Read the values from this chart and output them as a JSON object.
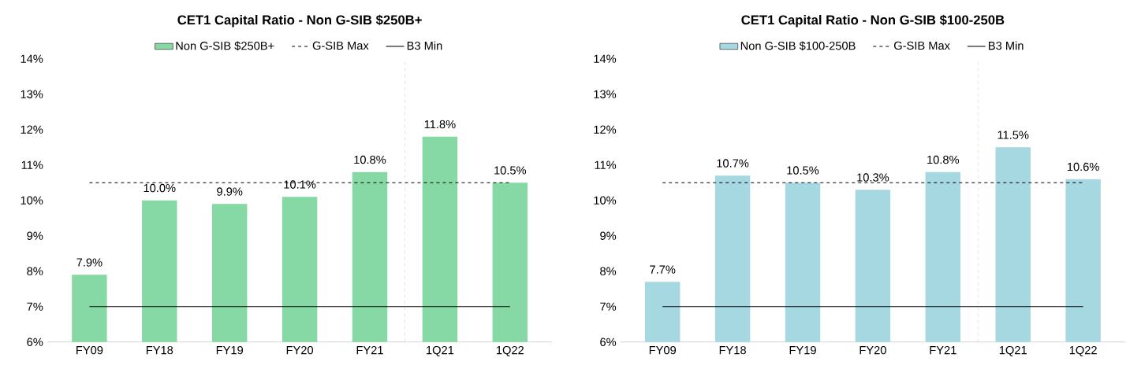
{
  "chart_data": [
    {
      "type": "bar",
      "title": "CET1 Capital Ratio - Non G-SIB $250B+",
      "categories": [
        "FY09",
        "FY18",
        "FY19",
        "FY20",
        "FY21",
        "1Q21",
        "1Q22"
      ],
      "series": [
        {
          "name": "Non G-SIB $250B+",
          "color": "#86d9a4",
          "values": [
            7.9,
            10.0,
            9.9,
            10.1,
            10.8,
            11.8,
            10.5
          ],
          "value_labels": [
            "7.9%",
            "10.0%",
            "9.9%",
            "10.1%",
            "10.8%",
            "11.8%",
            "10.5%"
          ]
        },
        {
          "name": "G-SIB Max",
          "type": "line",
          "line_style": "dashed",
          "color": "#000000",
          "values": [
            10.5,
            10.5,
            10.5,
            10.5,
            10.5,
            10.5,
            10.5
          ]
        },
        {
          "name": "B3 Min",
          "type": "line",
          "line_style": "solid",
          "color": "#000000",
          "values": [
            7,
            7,
            7,
            7,
            7,
            7,
            7
          ]
        }
      ],
      "ylim": [
        6,
        14
      ],
      "yticks": [
        {
          "value": 6,
          "label": "6%"
        },
        {
          "value": 7,
          "label": "7%"
        },
        {
          "value": 8,
          "label": "8%"
        },
        {
          "value": 9,
          "label": "9%"
        },
        {
          "value": 10,
          "label": "10%"
        },
        {
          "value": 11,
          "label": "11%"
        },
        {
          "value": 12,
          "label": "12%"
        },
        {
          "value": 13,
          "label": "13%"
        },
        {
          "value": 14,
          "label": "14%"
        }
      ],
      "legend": "top",
      "grid": false
    },
    {
      "type": "bar",
      "title": "CET1 Capital Ratio - Non G-SIB $100-250B",
      "categories": [
        "FY09",
        "FY18",
        "FY19",
        "FY20",
        "FY21",
        "1Q21",
        "1Q22"
      ],
      "series": [
        {
          "name": "Non G-SIB $100-250B",
          "color": "#a5d8e0",
          "values": [
            7.7,
            10.7,
            10.5,
            10.3,
            10.8,
            11.5,
            10.6
          ],
          "value_labels": [
            "7.7%",
            "10.7%",
            "10.5%",
            "10.3%",
            "10.8%",
            "11.5%",
            "10.6%"
          ]
        },
        {
          "name": "G-SIB Max",
          "type": "line",
          "line_style": "dashed",
          "color": "#000000",
          "values": [
            10.5,
            10.5,
            10.5,
            10.5,
            10.5,
            10.5,
            10.5
          ]
        },
        {
          "name": "B3 Min",
          "type": "line",
          "line_style": "solid",
          "color": "#000000",
          "values": [
            7,
            7,
            7,
            7,
            7,
            7,
            7
          ]
        }
      ],
      "ylim": [
        6,
        14
      ],
      "yticks": [
        {
          "value": 6,
          "label": "6%"
        },
        {
          "value": 7,
          "label": "7%"
        },
        {
          "value": 8,
          "label": "8%"
        },
        {
          "value": 9,
          "label": "9%"
        },
        {
          "value": 10,
          "label": "10%"
        },
        {
          "value": 11,
          "label": "11%"
        },
        {
          "value": 12,
          "label": "12%"
        },
        {
          "value": 13,
          "label": "13%"
        },
        {
          "value": 14,
          "label": "14%"
        }
      ],
      "legend": "top",
      "grid": false
    }
  ]
}
